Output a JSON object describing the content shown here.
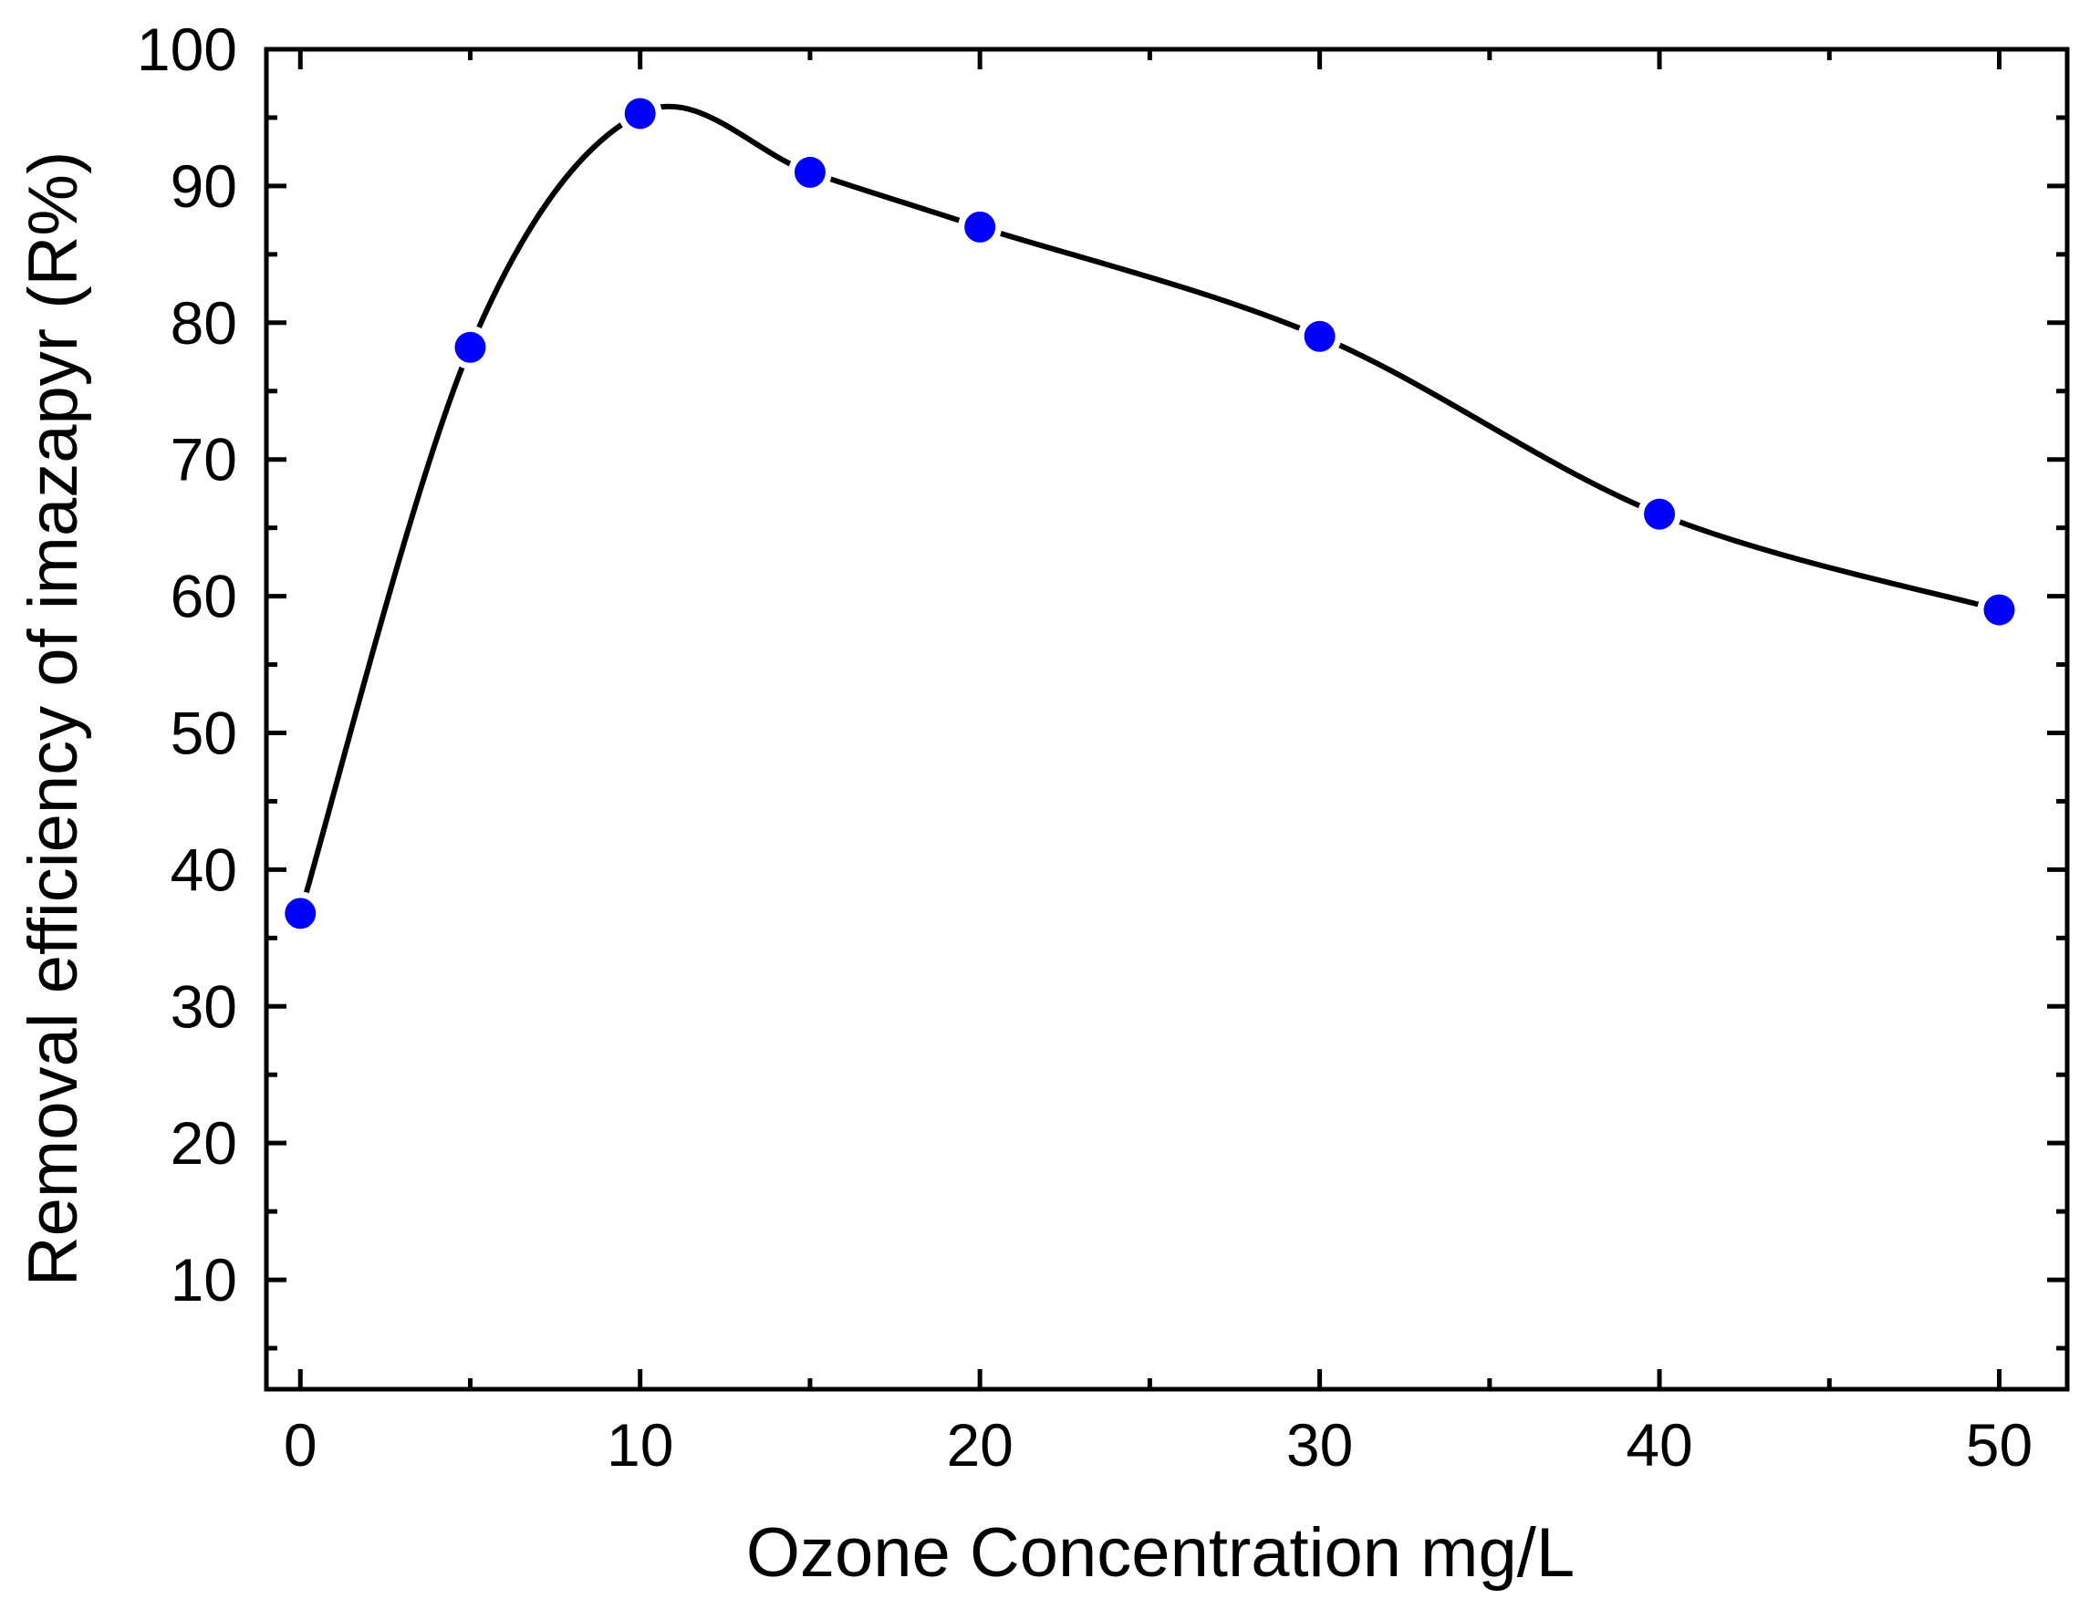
{
  "chart_data": {
    "type": "line",
    "title": "",
    "xlabel": "Ozone Concentration mg/L",
    "ylabel": "Removal efficiency of imazapyr (R%)",
    "xlim": [
      -1,
      52
    ],
    "ylim": [
      2,
      100
    ],
    "x_ticks": [
      0,
      10,
      20,
      30,
      40,
      50
    ],
    "y_ticks": [
      10,
      20,
      30,
      40,
      50,
      60,
      70,
      80,
      90,
      100
    ],
    "grid": false,
    "legend": "none",
    "series": [
      {
        "marker_color": "#0000ff",
        "line_color": "#000000",
        "x": [
          0,
          5,
          10,
          15,
          20,
          30,
          40,
          50
        ],
        "y": [
          36.8,
          78.2,
          95.3,
          91.0,
          87.0,
          79.0,
          66.0,
          59.0
        ]
      }
    ]
  }
}
